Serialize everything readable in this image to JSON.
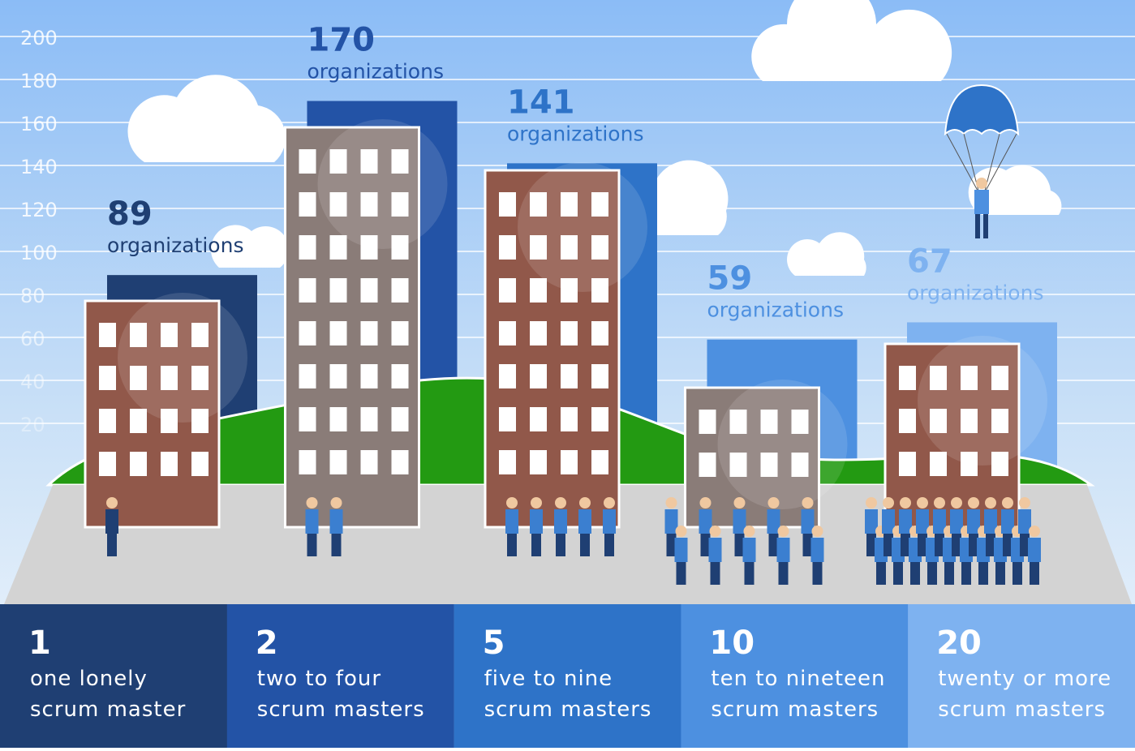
{
  "chart_data": {
    "type": "bar",
    "categories": [
      "1",
      "2",
      "5",
      "10",
      "20"
    ],
    "category_labels": [
      [
        "one lonely",
        "scrum master"
      ],
      [
        "two to four",
        "scrum masters"
      ],
      [
        "five to nine",
        "scrum masters"
      ],
      [
        "ten to nineteen",
        "scrum masters"
      ],
      [
        "twenty or more",
        "scrum masters"
      ]
    ],
    "values": [
      89,
      170,
      141,
      59,
      67
    ],
    "value_unit": "organizations",
    "colors": [
      "#1f3f73",
      "#2353a6",
      "#2e73c8",
      "#4d90e0",
      "#7eb2f0"
    ],
    "ylim": [
      0,
      200
    ],
    "yticks": [
      20,
      40,
      60,
      80,
      100,
      120,
      140,
      160,
      180,
      200
    ],
    "grid": true
  }
}
